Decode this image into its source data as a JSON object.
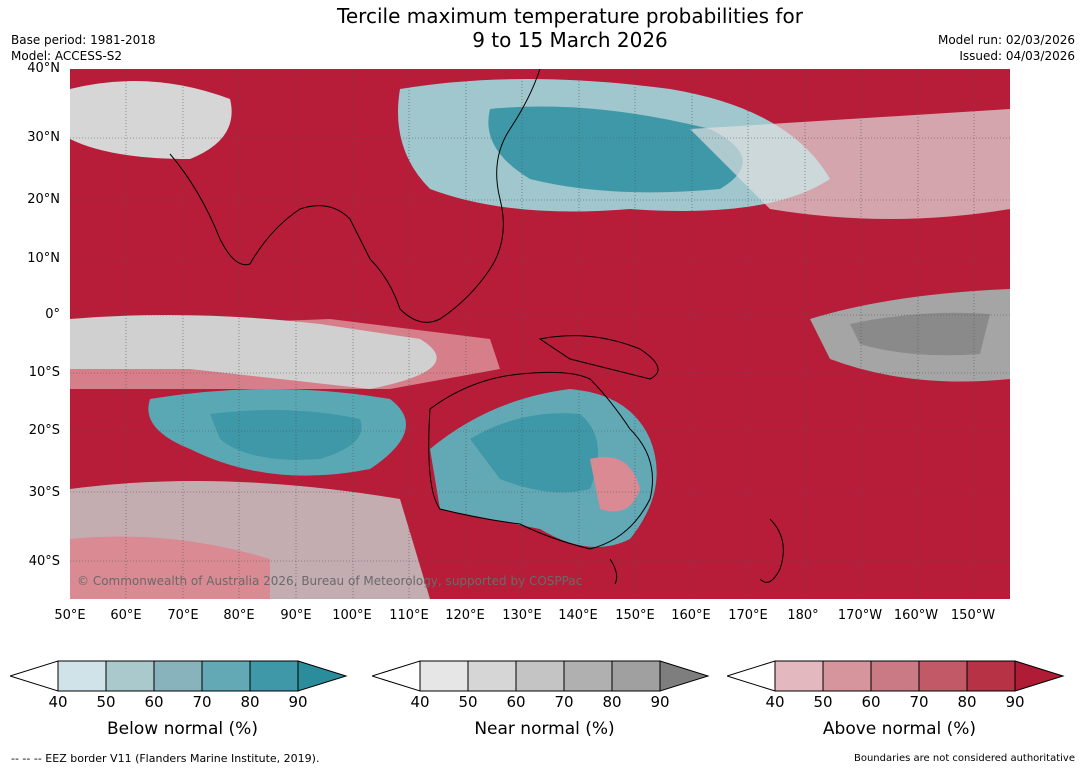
{
  "header": {
    "title_line1": "Tercile maximum temperature probabilities for",
    "title_line2": "9 to 15 March 2026",
    "base_period": "Base period: 1981-2018",
    "model": "Model: ACCESS-S2",
    "model_run": "Model run: 02/03/2026",
    "issued": "Issued: 04/03/2026"
  },
  "map": {
    "lat_labels": [
      "40°N",
      "30°N",
      "20°N",
      "10°N",
      "0°",
      "10°S",
      "20°S",
      "30°S",
      "40°S"
    ],
    "lon_labels": [
      "50°E",
      "60°E",
      "70°E",
      "80°E",
      "90°E",
      "100°E",
      "110°E",
      "120°E",
      "130°E",
      "140°E",
      "150°E",
      "160°E",
      "170°E",
      "180°",
      "170°W",
      "160°W",
      "150°W"
    ],
    "copyright": "© Commonwealth of Australia 2026, Bureau of Meteorology, supported by COSPPac"
  },
  "legends": [
    {
      "title": "Below normal (%)",
      "ticks": [
        "40",
        "50",
        "60",
        "70",
        "80",
        "90"
      ],
      "colors": [
        "#ffffff",
        "#cfe3e8",
        "#a9c9cd",
        "#88b3bd",
        "#62a9b5",
        "#3e98a8",
        "#2b8c9c"
      ]
    },
    {
      "title": "Near normal (%)",
      "ticks": [
        "40",
        "50",
        "60",
        "70",
        "80",
        "90"
      ],
      "colors": [
        "#ffffff",
        "#e6e6e6",
        "#d6d6d6",
        "#c4c4c4",
        "#b0b0b0",
        "#a0a0a0",
        "#7e7e7e"
      ]
    },
    {
      "title": "Above normal (%)",
      "ticks": [
        "40",
        "50",
        "60",
        "70",
        "80",
        "90"
      ],
      "colors": [
        "#ffffff",
        "#e3b9bf",
        "#d6949c",
        "#c97a84",
        "#c25966",
        "#b83245",
        "#b01c35"
      ]
    }
  ],
  "footer": {
    "eez_note": "-- -- -- EEZ border V11 (Flanders Marine Institute, 2019).",
    "disclaimer": "Boundaries are not considered authoritative"
  },
  "colors": {
    "above": "#b71c38",
    "below": "#3e98a8",
    "near": "#a5a5a5"
  }
}
